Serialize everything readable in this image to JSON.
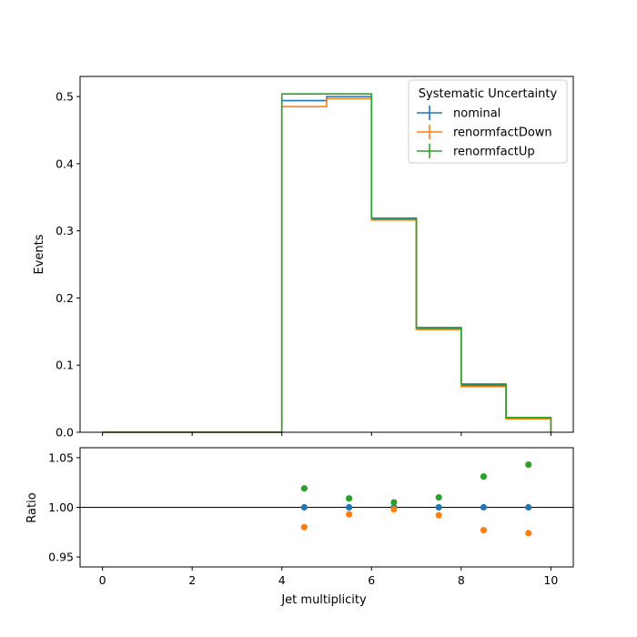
{
  "chart_data": [
    {
      "type": "line",
      "subtype": "step-histogram",
      "ylabel": "Events",
      "xlim": [
        -0.5,
        10.5
      ],
      "ylim": [
        0,
        0.53
      ],
      "yticks": [
        "0.0",
        "0.1",
        "0.2",
        "0.3",
        "0.4",
        "0.5"
      ],
      "ytick_values": [
        0.0,
        0.1,
        0.2,
        0.3,
        0.4,
        0.5
      ],
      "bin_edges": [
        0,
        1,
        2,
        3,
        4,
        5,
        6,
        7,
        8,
        9,
        10
      ],
      "legend": {
        "title": "Systematic Uncertainty",
        "placement": "top-right"
      },
      "series": [
        {
          "name": "nominal",
          "color": "#1f77b4",
          "values": [
            0,
            0,
            0,
            0,
            0.494,
            0.5,
            0.317,
            0.155,
            0.07,
            0.021
          ]
        },
        {
          "name": "renormfactDown",
          "color": "#ff7f0e",
          "values": [
            0,
            0,
            0,
            0,
            0.485,
            0.497,
            0.316,
            0.153,
            0.068,
            0.02
          ]
        },
        {
          "name": "renormfactUp",
          "color": "#2ca02c",
          "values": [
            0,
            0,
            0,
            0,
            0.504,
            0.504,
            0.319,
            0.156,
            0.072,
            0.022
          ]
        }
      ]
    },
    {
      "type": "scatter",
      "xlabel": "Jet multiplicity",
      "ylabel": "Ratio",
      "xlim": [
        -0.5,
        10.5
      ],
      "ylim": [
        0.94,
        1.06
      ],
      "xticks": [
        "0",
        "2",
        "4",
        "6",
        "8",
        "10"
      ],
      "xtick_values": [
        0,
        2,
        4,
        6,
        8,
        10
      ],
      "yticks": [
        "0.95",
        "1.00",
        "1.05"
      ],
      "ytick_values": [
        0.95,
        1.0,
        1.05
      ],
      "reference_line": 1.0,
      "x": [
        4.5,
        5.5,
        6.5,
        7.5,
        8.5,
        9.5
      ],
      "series": [
        {
          "name": "nominal",
          "color": "#1f77b4",
          "values": [
            1.0,
            1.0,
            1.0,
            1.0,
            1.0,
            1.0
          ]
        },
        {
          "name": "renormfactDown",
          "color": "#ff7f0e",
          "values": [
            0.98,
            0.993,
            0.998,
            0.992,
            0.977,
            0.974
          ]
        },
        {
          "name": "renormfactUp",
          "color": "#2ca02c",
          "values": [
            1.019,
            1.009,
            1.005,
            1.01,
            1.031,
            1.043
          ]
        }
      ]
    }
  ]
}
